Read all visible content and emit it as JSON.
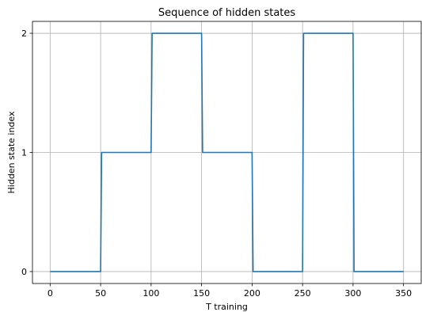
{
  "chart_data": {
    "type": "line",
    "title": "Sequence of hidden states",
    "xlabel": "T training",
    "ylabel": "Hidden state index",
    "xlim": [
      -17.5,
      367.5
    ],
    "ylim": [
      -0.1,
      2.1
    ],
    "x_ticks": [
      0,
      50,
      100,
      150,
      200,
      250,
      300,
      350
    ],
    "y_ticks": [
      0,
      1,
      2
    ],
    "grid": true,
    "drawstyle": "steps",
    "series": [
      {
        "color": "#1f77b4",
        "x": [
          0,
          50,
          51,
          100,
          101,
          150,
          151,
          200,
          201,
          250,
          251,
          300,
          301,
          350
        ],
        "y": [
          0,
          0,
          1,
          1,
          2,
          2,
          1,
          1,
          0,
          0,
          2,
          2,
          0,
          0
        ]
      }
    ]
  }
}
